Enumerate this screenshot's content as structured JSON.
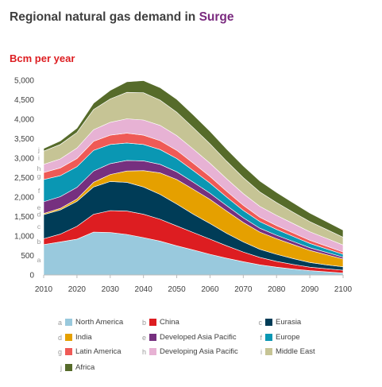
{
  "header": {
    "title_main": "Regional natural gas demand in ",
    "title_accent": "Surge",
    "unit": "Bcm per year",
    "accent_color": "#7a2a7f",
    "unit_color": "#dd1d21"
  },
  "chart_data": {
    "type": "area",
    "stacked": true,
    "title": "Regional natural gas demand in Surge",
    "ylabel": "Bcm per year",
    "xlabel": "",
    "xlim": [
      2010,
      2100
    ],
    "ylim": [
      0,
      5000
    ],
    "x_ticks": [
      "2010",
      "2020",
      "2030",
      "2040",
      "2050",
      "2060",
      "2070",
      "2080",
      "2090",
      "2100"
    ],
    "y_ticks": [
      "0",
      "500",
      "1,000",
      "1,500",
      "2,000",
      "2,500",
      "3,000",
      "3,500",
      "4,000",
      "4,500",
      "5,000"
    ],
    "grid": false,
    "x": [
      2010,
      2015,
      2020,
      2025,
      2030,
      2035,
      2040,
      2045,
      2050,
      2055,
      2060,
      2065,
      2070,
      2075,
      2080,
      2085,
      2090,
      2095,
      2100
    ],
    "series": [
      {
        "letter": "a",
        "name": "North America",
        "color": "#99c9dd",
        "values": [
          780,
          850,
          920,
          1100,
          1090,
          1040,
          960,
          870,
          750,
          640,
          530,
          430,
          340,
          260,
          200,
          150,
          110,
          80,
          50
        ]
      },
      {
        "letter": "b",
        "name": "China",
        "color": "#dd1d21",
        "values": [
          150,
          200,
          330,
          460,
          560,
          600,
          600,
          560,
          510,
          450,
          390,
          320,
          250,
          190,
          150,
          120,
          90,
          80,
          70
        ]
      },
      {
        "letter": "c",
        "name": "Eurasia",
        "color": "#003c57",
        "values": [
          620,
          620,
          640,
          700,
          750,
          740,
          700,
          640,
          560,
          470,
          400,
          320,
          260,
          210,
          180,
          150,
          120,
          100,
          90
        ]
      },
      {
        "letter": "d",
        "name": "India",
        "color": "#e5a000",
        "values": [
          30,
          40,
          60,
          120,
          180,
          290,
          420,
          550,
          630,
          640,
          620,
          570,
          500,
          440,
          400,
          360,
          310,
          260,
          200
        ]
      },
      {
        "letter": "e",
        "name": "Developed Asia Pacific",
        "color": "#76307f",
        "values": [
          300,
          300,
          300,
          290,
          280,
          270,
          250,
          220,
          200,
          180,
          160,
          140,
          120,
          100,
          90,
          80,
          70,
          60,
          50
        ]
      },
      {
        "letter": "f",
        "name": "Europe",
        "color": "#0a97b3",
        "values": [
          570,
          540,
          530,
          530,
          490,
          450,
          420,
          380,
          340,
          300,
          260,
          220,
          190,
          170,
          150,
          130,
          110,
          90,
          70
        ]
      },
      {
        "letter": "g",
        "name": "Latin America",
        "color": "#ef5a56",
        "values": [
          180,
          200,
          210,
          230,
          240,
          250,
          240,
          230,
          210,
          190,
          170,
          150,
          130,
          110,
          100,
          90,
          80,
          70,
          60
        ]
      },
      {
        "letter": "h",
        "name": "Developing Asia Pacific",
        "color": "#e7b2d4",
        "values": [
          210,
          230,
          270,
          300,
          330,
          370,
          390,
          390,
          380,
          360,
          340,
          320,
          300,
          280,
          260,
          240,
          220,
          200,
          180
        ]
      },
      {
        "letter": "i",
        "name": "Middle East",
        "color": "#c6c495",
        "values": [
          340,
          370,
          400,
          520,
          600,
          680,
          700,
          650,
          600,
          550,
          500,
          450,
          410,
          370,
          330,
          290,
          260,
          230,
          200
        ]
      },
      {
        "letter": "j",
        "name": "Africa",
        "color": "#566b2a",
        "values": [
          70,
          90,
          110,
          160,
          220,
          270,
          310,
          320,
          330,
          330,
          320,
          310,
          300,
          280,
          260,
          240,
          220,
          200,
          180
        ]
      }
    ],
    "legend_position": "bottom"
  }
}
